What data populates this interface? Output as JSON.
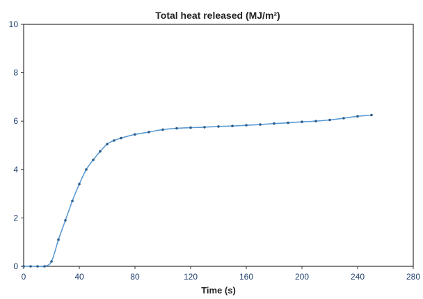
{
  "chart_data": {
    "type": "line",
    "title": "Total heat released (MJ/m²)",
    "xlabel": "Time (s)",
    "ylabel": "",
    "xlim": [
      0,
      280
    ],
    "ylim": [
      0,
      10
    ],
    "x_ticks": [
      0,
      40,
      80,
      120,
      160,
      200,
      240,
      280
    ],
    "x_tick_labels": [
      "0",
      "40",
      "80",
      "120",
      "160",
      "200",
      "240",
      "280"
    ],
    "y_ticks": [
      0,
      2,
      4,
      6,
      8,
      10
    ],
    "y_tick_labels": [
      "0",
      "2",
      "4",
      "6",
      "8",
      "10"
    ],
    "grid": false,
    "line_color": "#5b9bd5",
    "marker_color": "#2e5c8a",
    "series": [
      {
        "x": [
          0,
          5,
          10,
          15,
          20,
          25,
          30,
          35,
          40,
          45,
          50,
          55,
          60,
          65,
          70,
          80,
          90,
          100,
          110,
          120,
          130,
          140,
          150,
          160,
          170,
          180,
          190,
          200,
          210,
          220,
          230,
          240,
          250
        ],
        "y": [
          0,
          0,
          0,
          0,
          0.2,
          1.1,
          1.9,
          2.7,
          3.4,
          4.0,
          4.4,
          4.75,
          5.05,
          5.2,
          5.3,
          5.45,
          5.55,
          5.65,
          5.7,
          5.73,
          5.75,
          5.78,
          5.8,
          5.83,
          5.86,
          5.9,
          5.93,
          5.97,
          6.0,
          6.05,
          6.12,
          6.2,
          6.25
        ]
      }
    ]
  }
}
